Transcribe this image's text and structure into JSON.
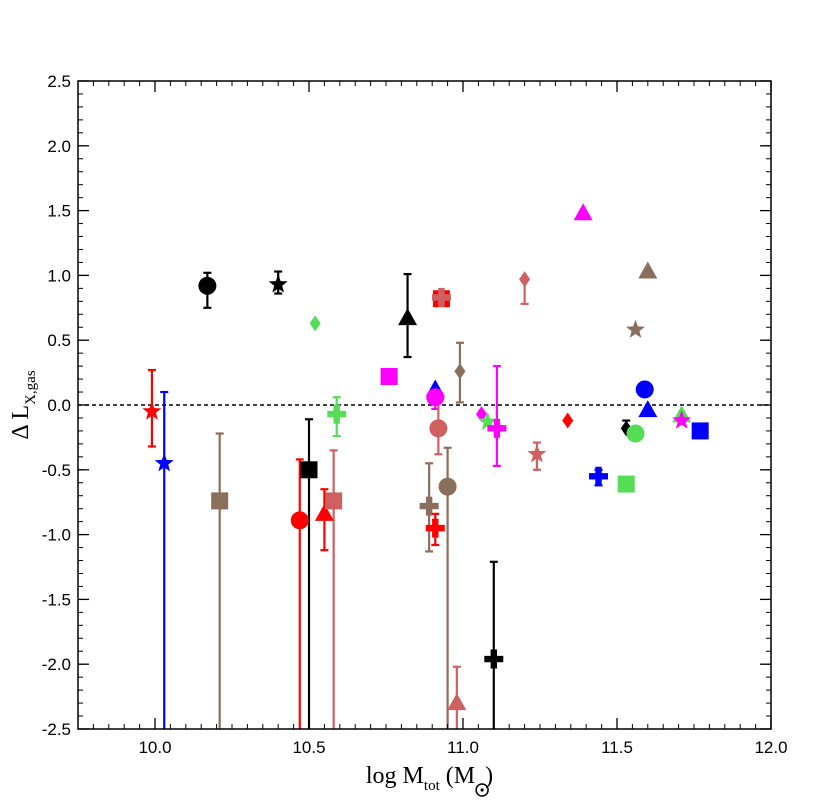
{
  "chart_data": {
    "type": "scatter",
    "title": "",
    "xlabel": "log M",
    "xlabel_sub": "tot",
    "xlabel_unit_open": " (M",
    "xlabel_unit_close": ")",
    "ylabel": "Δ L",
    "ylabel_sub": "X,gas",
    "xlim": [
      9.75,
      12.0
    ],
    "ylim": [
      -2.5,
      2.5
    ],
    "x_ticks": [
      10.0,
      10.5,
      11.0,
      11.5,
      12.0
    ],
    "x_tick_labels": [
      "10.0",
      "10.5",
      "11.0",
      "11.5",
      "12.0"
    ],
    "y_ticks": [
      -2.5,
      -2.0,
      -1.5,
      -1.0,
      -0.5,
      0.0,
      0.5,
      1.0,
      1.5,
      2.0,
      2.5
    ],
    "y_tick_labels": [
      "-2.5",
      "-2.0",
      "-1.5",
      "-1.0",
      "-0.5",
      "0.0",
      "0.5",
      "1.0",
      "1.5",
      "2.0",
      "2.5"
    ],
    "reference_line": {
      "y": 0.0,
      "style": "dashed"
    },
    "colors": {
      "black": "#000000",
      "red": "#ff0000",
      "blue": "#0000ff",
      "brown": "#8b6e5c",
      "rose": "#d06060",
      "magenta": "#ff00ff",
      "green": "#55dd55"
    },
    "points": [
      {
        "x": 9.99,
        "y": -0.05,
        "marker": "star",
        "color": "red",
        "err_low": 0.27,
        "err_high": 0.32
      },
      {
        "x": 10.03,
        "y": -0.45,
        "marker": "star",
        "color": "blue",
        "err_low": 2.1,
        "err_high": 0.55
      },
      {
        "x": 10.17,
        "y": 0.92,
        "marker": "circle",
        "color": "black",
        "err_low": 0.17,
        "err_high": 0.1
      },
      {
        "x": 10.21,
        "y": -0.74,
        "marker": "square",
        "color": "brown",
        "err_low": 1.8,
        "err_high": 0.52
      },
      {
        "x": 10.4,
        "y": 0.93,
        "marker": "star",
        "color": "black",
        "err_low": 0.07,
        "err_high": 0.1
      },
      {
        "x": 10.47,
        "y": -0.89,
        "marker": "circle",
        "color": "red",
        "err_low": 1.7,
        "err_high": 0.47
      },
      {
        "x": 10.5,
        "y": -0.5,
        "marker": "square",
        "color": "black",
        "err_low": 2.0,
        "err_high": 0.39
      },
      {
        "x": 10.52,
        "y": 0.63,
        "marker": "diamond",
        "color": "green",
        "err_low": 0,
        "err_high": 0
      },
      {
        "x": 10.55,
        "y": -0.84,
        "marker": "triangle",
        "color": "red",
        "err_low": 0.28,
        "err_high": 0.19
      },
      {
        "x": 10.58,
        "y": -0.74,
        "marker": "square",
        "color": "rose",
        "err_low": 1.8,
        "err_high": 0.39
      },
      {
        "x": 10.59,
        "y": -0.07,
        "marker": "cross",
        "color": "green",
        "err_low": 0.17,
        "err_high": 0.13
      },
      {
        "x": 10.76,
        "y": 0.22,
        "marker": "square",
        "color": "magenta",
        "err_low": 0,
        "err_high": 0
      },
      {
        "x": 10.82,
        "y": 0.67,
        "marker": "triangle",
        "color": "black",
        "err_low": 0.3,
        "err_high": 0.34
      },
      {
        "x": 10.89,
        "y": -0.78,
        "marker": "cross",
        "color": "brown",
        "err_low": 0.35,
        "err_high": 0.33
      },
      {
        "x": 10.91,
        "y": -0.95,
        "marker": "cross",
        "color": "red",
        "err_low": 0.13,
        "err_high": 0.11
      },
      {
        "x": 10.91,
        "y": 0.12,
        "marker": "triangle",
        "color": "blue",
        "err_low": 0,
        "err_high": 0
      },
      {
        "x": 10.91,
        "y": 0.06,
        "marker": "circle",
        "color": "magenta",
        "err_low": 0.09,
        "err_high": 0
      },
      {
        "x": 10.92,
        "y": -0.18,
        "marker": "circle",
        "color": "rose",
        "err_low": 0.2,
        "err_high": 0.2
      },
      {
        "x": 10.93,
        "y": 0.82,
        "marker": "square",
        "color": "red",
        "err_low": 0,
        "err_high": 0
      },
      {
        "x": 10.93,
        "y": 0.83,
        "marker": "cross",
        "color": "rose",
        "err_low": 0,
        "err_high": 0
      },
      {
        "x": 10.95,
        "y": -0.63,
        "marker": "circle",
        "color": "brown",
        "err_low": 1.9,
        "err_high": 0.3
      },
      {
        "x": 10.98,
        "y": -2.3,
        "marker": "triangle",
        "color": "rose",
        "err_low": 0.2,
        "err_high": 0.28
      },
      {
        "x": 10.99,
        "y": 0.26,
        "marker": "diamond",
        "color": "brown",
        "err_low": 0.24,
        "err_high": 0.22
      },
      {
        "x": 11.06,
        "y": -0.07,
        "marker": "diamond",
        "color": "magenta",
        "err_low": 0,
        "err_high": 0
      },
      {
        "x": 11.08,
        "y": -0.13,
        "marker": "star",
        "color": "green",
        "err_low": 0,
        "err_high": 0
      },
      {
        "x": 11.1,
        "y": -1.96,
        "marker": "cross",
        "color": "black",
        "err_low": 0.55,
        "err_high": 0.75
      },
      {
        "x": 11.11,
        "y": -0.18,
        "marker": "cross",
        "color": "magenta",
        "err_low": 0.29,
        "err_high": 0.48
      },
      {
        "x": 11.2,
        "y": 0.97,
        "marker": "diamond",
        "color": "rose",
        "err_low": 0.19,
        "err_high": 0
      },
      {
        "x": 11.24,
        "y": -0.38,
        "marker": "star",
        "color": "rose",
        "err_low": 0.12,
        "err_high": 0.09
      },
      {
        "x": 11.34,
        "y": -0.12,
        "marker": "diamond",
        "color": "red",
        "err_low": 0,
        "err_high": 0
      },
      {
        "x": 11.39,
        "y": 1.48,
        "marker": "triangle",
        "color": "magenta",
        "err_low": 0,
        "err_high": 0
      },
      {
        "x": 11.44,
        "y": -0.55,
        "marker": "cross",
        "color": "blue",
        "err_low": 0.07,
        "err_high": 0.05
      },
      {
        "x": 11.53,
        "y": -0.18,
        "marker": "diamond",
        "color": "black",
        "err_low": 0,
        "err_high": 0.06
      },
      {
        "x": 11.56,
        "y": 0.58,
        "marker": "star",
        "color": "brown",
        "err_low": 0,
        "err_high": 0
      },
      {
        "x": 11.59,
        "y": 0.12,
        "marker": "circle",
        "color": "blue",
        "err_low": 0,
        "err_high": 0
      },
      {
        "x": 11.6,
        "y": -0.04,
        "marker": "triangle",
        "color": "blue",
        "err_low": 0,
        "err_high": 0
      },
      {
        "x": 11.6,
        "y": 1.03,
        "marker": "triangle",
        "color": "brown",
        "err_low": 0,
        "err_high": 0
      },
      {
        "x": 11.71,
        "y": -0.08,
        "marker": "triangle",
        "color": "green",
        "err_low": 0,
        "err_high": 0
      },
      {
        "x": 11.71,
        "y": -0.12,
        "marker": "star",
        "color": "magenta",
        "err_low": 0,
        "err_high": 0
      },
      {
        "x": 11.77,
        "y": -0.2,
        "marker": "square",
        "color": "blue",
        "err_low": 0,
        "err_high": 0
      },
      {
        "x": 11.56,
        "y": -0.22,
        "marker": "circle",
        "color": "green",
        "err_low": 0,
        "err_high": 0
      },
      {
        "x": 11.53,
        "y": -0.61,
        "marker": "square",
        "color": "green",
        "err_low": 0,
        "err_high": 0
      }
    ]
  }
}
